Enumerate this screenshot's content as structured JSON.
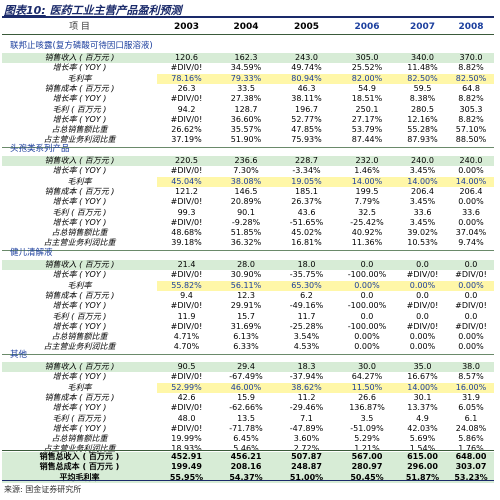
{
  "title": {
    "label": "图表10:",
    "text": "医药工业主营产品盈利预测"
  },
  "header": {
    "item": "项 目",
    "years": [
      "2003",
      "2004",
      "2005",
      "2006",
      "2007",
      "2008"
    ]
  },
  "sections": [
    {
      "name": "联邦止咳露(复方磷酸可待因口服溶液)",
      "rows": [
        {
          "label": "销售收入 ( 百万元 )",
          "style": "green",
          "values": [
            "120.6",
            "162.3",
            "243.0",
            "305.0",
            "340.0",
            "370.0"
          ]
        },
        {
          "label": "增长率 ( YOY )",
          "style": "",
          "values": [
            "#DIV/0!",
            "34.59%",
            "49.74%",
            "25.52%",
            "11.48%",
            "8.82%"
          ]
        },
        {
          "label": "毛利率",
          "style": "yellow",
          "values": [
            "78.16%",
            "79.33%",
            "80.94%",
            "82.00%",
            "82.50%",
            "82.50%"
          ]
        },
        {
          "label": "销售成本 ( 百万元 )",
          "style": "",
          "values": [
            "26.3",
            "33.5",
            "46.3",
            "54.9",
            "59.5",
            "64.8"
          ]
        },
        {
          "label": "增长率 ( YOY )",
          "style": "",
          "values": [
            "#DIV/0!",
            "27.38%",
            "38.11%",
            "18.51%",
            "8.38%",
            "8.82%"
          ]
        },
        {
          "label": "毛利 ( 百万元 )",
          "style": "",
          "values": [
            "94.2",
            "128.7",
            "196.7",
            "250.1",
            "280.5",
            "305.3"
          ]
        },
        {
          "label": "增长率 ( YOY )",
          "style": "",
          "values": [
            "#DIV/0!",
            "36.60%",
            "52.77%",
            "27.17%",
            "12.16%",
            "8.82%"
          ]
        },
        {
          "label": "占总销售额比重",
          "style": "",
          "values": [
            "26.62%",
            "35.57%",
            "47.85%",
            "53.79%",
            "55.28%",
            "57.10%"
          ]
        },
        {
          "label": "占主营业务利润比重",
          "style": "",
          "values": [
            "37.19%",
            "51.90%",
            "75.93%",
            "87.44%",
            "87.93%",
            "88.50%"
          ]
        }
      ]
    },
    {
      "name": "头孢类系列产品",
      "rows": [
        {
          "label": "销售收入 ( 百万元 )",
          "style": "green",
          "values": [
            "220.5",
            "236.6",
            "228.7",
            "232.0",
            "240.0",
            "240.0"
          ]
        },
        {
          "label": "增长率 ( YOY )",
          "style": "",
          "values": [
            "#DIV/0!",
            "7.30%",
            "-3.34%",
            "1.46%",
            "3.45%",
            "0.00%"
          ]
        },
        {
          "label": "毛利率",
          "style": "yellow",
          "values": [
            "45.04%",
            "38.08%",
            "19.05%",
            "14.00%",
            "14.00%",
            "14.00%"
          ]
        },
        {
          "label": "销售成本 ( 百万元 )",
          "style": "",
          "values": [
            "121.2",
            "146.5",
            "185.1",
            "199.5",
            "206.4",
            "206.4"
          ]
        },
        {
          "label": "增长率 ( YOY )",
          "style": "",
          "values": [
            "#DIV/0!",
            "20.89%",
            "26.37%",
            "7.79%",
            "3.45%",
            "0.00%"
          ]
        },
        {
          "label": "毛利 ( 百万元 )",
          "style": "",
          "values": [
            "99.3",
            "90.1",
            "43.6",
            "32.5",
            "33.6",
            "33.6"
          ]
        },
        {
          "label": "增长率 ( YOY )",
          "style": "",
          "values": [
            "#DIV/0!",
            "-9.28%",
            "-51.65%",
            "-25.42%",
            "3.45%",
            "0.00%"
          ]
        },
        {
          "label": "占总销售额比重",
          "style": "",
          "values": [
            "48.68%",
            "51.85%",
            "45.02%",
            "40.92%",
            "39.02%",
            "37.04%"
          ]
        },
        {
          "label": "占主营业务利润比重",
          "style": "",
          "values": [
            "39.18%",
            "36.32%",
            "16.81%",
            "11.36%",
            "10.53%",
            "9.74%"
          ]
        }
      ]
    },
    {
      "name": "健儿清解液",
      "rows": [
        {
          "label": "销售收入 ( 百万元 )",
          "style": "green",
          "values": [
            "21.4",
            "28.0",
            "18.0",
            "0.0",
            "0.0",
            "0.0"
          ]
        },
        {
          "label": "增长率 ( YOY )",
          "style": "",
          "values": [
            "#DIV/0!",
            "30.90%",
            "-35.75%",
            "-100.00%",
            "#DIV/0!",
            "#DIV/0!"
          ]
        },
        {
          "label": "毛利率",
          "style": "yellow",
          "values": [
            "55.82%",
            "56.11%",
            "65.30%",
            "0.00%",
            "0.00%",
            "0.00%"
          ]
        },
        {
          "label": "销售成本 ( 百万元 )",
          "style": "",
          "values": [
            "9.4",
            "12.3",
            "6.2",
            "0.0",
            "0.0",
            "0.0"
          ]
        },
        {
          "label": "增长率 ( YOY )",
          "style": "",
          "values": [
            "#DIV/0!",
            "29.91%",
            "-49.16%",
            "-100.00%",
            "#DIV/0!",
            "#DIV/0!"
          ]
        },
        {
          "label": "毛利 ( 百万元 )",
          "style": "",
          "values": [
            "11.9",
            "15.7",
            "11.7",
            "0.0",
            "0.0",
            "0.0"
          ]
        },
        {
          "label": "增长率 ( YOY )",
          "style": "",
          "values": [
            "#DIV/0!",
            "31.69%",
            "-25.28%",
            "-100.00%",
            "#DIV/0!",
            "#DIV/0!"
          ]
        },
        {
          "label": "占总销售额比重",
          "style": "",
          "values": [
            "4.71%",
            "6.13%",
            "3.54%",
            "0.00%",
            "0.00%",
            "0.00%"
          ]
        },
        {
          "label": "占主营业务利润比重",
          "style": "",
          "values": [
            "4.70%",
            "6.33%",
            "4.53%",
            "0.00%",
            "0.00%",
            "0.00%"
          ]
        }
      ]
    },
    {
      "name": "其他",
      "rows": [
        {
          "label": "销售收入 ( 百万元 )",
          "style": "green",
          "values": [
            "90.5",
            "29.4",
            "18.3",
            "30.0",
            "35.0",
            "38.0"
          ]
        },
        {
          "label": "增长率 ( YOY )",
          "style": "",
          "values": [
            "#DIV/0!",
            "-67.49%",
            "-37.94%",
            "64.27%",
            "16.67%",
            "8.57%"
          ]
        },
        {
          "label": "毛利率",
          "style": "yellow",
          "values": [
            "52.99%",
            "46.00%",
            "38.62%",
            "11.50%",
            "14.00%",
            "16.00%"
          ]
        },
        {
          "label": "销售成本 ( 百万元 )",
          "style": "",
          "values": [
            "42.6",
            "15.9",
            "11.2",
            "26.6",
            "30.1",
            "31.9"
          ]
        },
        {
          "label": "增长率 ( YOY )",
          "style": "",
          "values": [
            "#DIV/0!",
            "-62.66%",
            "-29.46%",
            "136.87%",
            "13.37%",
            "6.05%"
          ]
        },
        {
          "label": "毛利 ( 百万元 )",
          "style": "",
          "values": [
            "48.0",
            "13.5",
            "7.1",
            "3.5",
            "4.9",
            "6.1"
          ]
        },
        {
          "label": "增长率 ( YOY )",
          "style": "",
          "values": [
            "#DIV/0!",
            "-71.78%",
            "-47.89%",
            "-51.09%",
            "42.03%",
            "24.08%"
          ]
        },
        {
          "label": "占总销售额比重",
          "style": "",
          "values": [
            "19.99%",
            "6.45%",
            "3.60%",
            "5.29%",
            "5.69%",
            "5.86%"
          ]
        },
        {
          "label": "占主营业务利润比重",
          "style": "",
          "values": [
            "18.93%",
            "5.46%",
            "2.72%",
            "1.21%",
            "1.54%",
            "1.76%"
          ]
        }
      ]
    }
  ],
  "totals": [
    {
      "label": "销售总收入 ( 百万元 )",
      "values": [
        "452.91",
        "456.21",
        "507.87",
        "567.00",
        "615.00",
        "648.00"
      ]
    },
    {
      "label": "销售总成本 ( 百万元 )",
      "values": [
        "199.49",
        "208.16",
        "248.87",
        "280.97",
        "296.00",
        "303.07"
      ]
    },
    {
      "label": "平均毛利率",
      "values": [
        "55.95%",
        "54.37%",
        "51.00%",
        "50.45%",
        "51.87%",
        "53.23%"
      ]
    }
  ],
  "footer": "来源: 国金证券研究所"
}
